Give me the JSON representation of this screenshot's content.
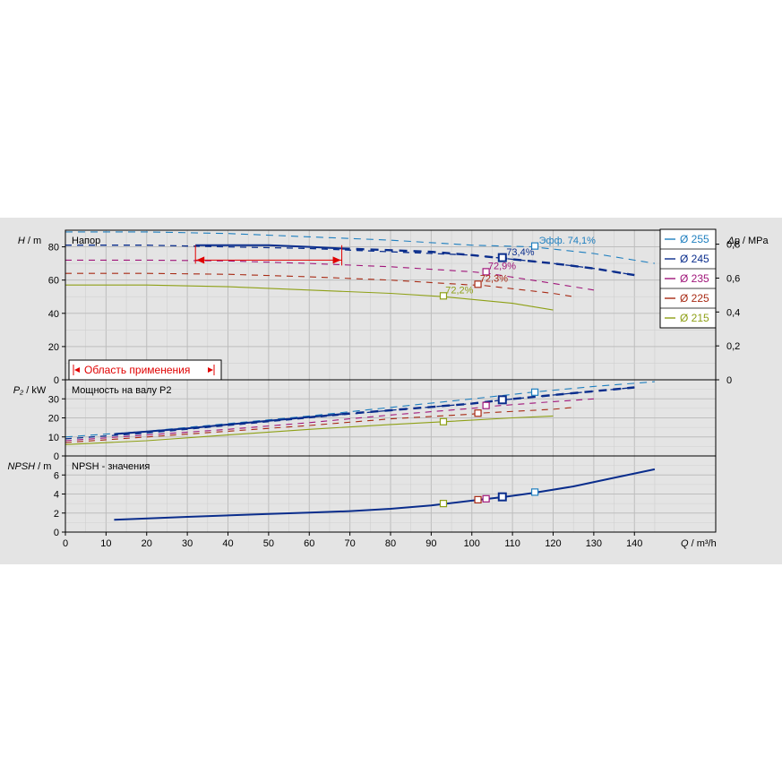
{
  "colors": {
    "background": "#e4e4e4",
    "grid": "#bdbdbd",
    "d255": "#1f7fbf",
    "d245": "#0a2d8c",
    "d235": "#a0157a",
    "d225": "#a82a14",
    "d215": "#8ea016",
    "range": "#e00000",
    "op_line": "#0a2d8c"
  },
  "chart_data": {
    "type": "line",
    "x_axis": {
      "label_italic": "Q",
      "label_unit": " / m³/h",
      "range": [
        0,
        160
      ],
      "ticks": [
        0,
        10,
        20,
        30,
        40,
        50,
        60,
        70,
        80,
        90,
        100,
        110,
        120,
        130,
        140
      ]
    },
    "legend": {
      "placement": "top-right",
      "entries": [
        {
          "key": "d255",
          "label": "Ø 255"
        },
        {
          "key": "d245",
          "label": "Ø 245"
        },
        {
          "key": "d235",
          "label": "Ø 235"
        },
        {
          "key": "d225",
          "label": "Ø 225"
        },
        {
          "key": "d215",
          "label": "Ø 215"
        }
      ]
    },
    "panels": {
      "head": {
        "title": "Напор",
        "ylabel_italic": "H",
        "ylabel_unit": " / m",
        "ylim": [
          0,
          90
        ],
        "ticks": [
          0,
          20,
          40,
          60,
          80
        ],
        "right_axis": {
          "label_italic": "Δp",
          "label_unit": " / MPa",
          "ticks": [
            "0",
            "0,2",
            "0,4",
            "0,6",
            "0,8"
          ],
          "tick_values_m": [
            0,
            20.4,
            40.8,
            61.2,
            81.6
          ]
        },
        "series": [
          {
            "key": "d255",
            "dash": "8,6",
            "width": 1.1,
            "points": [
              [
                0,
                89
              ],
              [
                20,
                89
              ],
              [
                40,
                88
              ],
              [
                60,
                86
              ],
              [
                80,
                84
              ],
              [
                100,
                81
              ],
              [
                115,
                80
              ],
              [
                130,
                76
              ],
              [
                145,
                70
              ]
            ]
          },
          {
            "key": "d245",
            "dash": "7,6",
            "width": 1.3,
            "points": [
              [
                0,
                81
              ],
              [
                20,
                81
              ],
              [
                40,
                80
              ],
              [
                60,
                79
              ],
              [
                80,
                77
              ],
              [
                100,
                75
              ],
              [
                108,
                73
              ],
              [
                120,
                70
              ],
              [
                130,
                67
              ],
              [
                140,
                63
              ]
            ]
          },
          {
            "key": "d235",
            "dash": "7,6",
            "width": 1.1,
            "points": [
              [
                0,
                72
              ],
              [
                20,
                72
              ],
              [
                40,
                71.5
              ],
              [
                60,
                70
              ],
              [
                80,
                68
              ],
              [
                100,
                65
              ],
              [
                104,
                64
              ],
              [
                120,
                58
              ],
              [
                130,
                54
              ]
            ]
          },
          {
            "key": "d225",
            "dash": "7,6",
            "width": 1.1,
            "points": [
              [
                0,
                64
              ],
              [
                20,
                64
              ],
              [
                40,
                63.5
              ],
              [
                60,
                62
              ],
              [
                80,
                60
              ],
              [
                100,
                57
              ],
              [
                102,
                57
              ],
              [
                120,
                52
              ],
              [
                125,
                50
              ]
            ]
          },
          {
            "key": "d215",
            "dash": "",
            "width": 1.1,
            "points": [
              [
                0,
                57
              ],
              [
                20,
                57
              ],
              [
                40,
                56
              ],
              [
                60,
                54
              ],
              [
                80,
                52
              ],
              [
                93,
                50
              ],
              [
                110,
                46
              ],
              [
                120,
                42
              ]
            ]
          }
        ],
        "operating_curve": {
          "key": "op_line",
          "points": [
            [
              32,
              81
            ],
            [
              50,
              81
            ],
            [
              60,
              80
            ],
            [
              68,
              79
            ]
          ],
          "tail_points": [
            [
              68,
              79
            ],
            [
              80,
              78
            ],
            [
              90,
              77
            ],
            [
              100,
              75
            ],
            [
              108,
              73
            ],
            [
              120,
              70
            ],
            [
              130,
              67
            ],
            [
              140,
              63
            ]
          ]
        },
        "range_bracket": {
          "x_min": 32,
          "x_max": 68,
          "y_top": 81,
          "y_bottom": 72
        },
        "markers": [
          {
            "key": "d255",
            "x": 115.5,
            "y": 80.5
          },
          {
            "key": "d245",
            "x": 107.5,
            "y": 73.5
          },
          {
            "key": "d235",
            "x": 103.5,
            "y": 65
          },
          {
            "key": "d225",
            "x": 101.5,
            "y": 57.5
          },
          {
            "key": "d215",
            "x": 93,
            "y": 50.5
          }
        ],
        "annotations": [
          {
            "key": "d255",
            "text": "Эфф.  74,1%",
            "x": 116.5,
            "y": 82
          },
          {
            "key": "d245",
            "text": "73,4%",
            "x": 108.5,
            "y": 75
          },
          {
            "key": "d235",
            "text": "72,9%",
            "x": 104,
            "y": 66.5
          },
          {
            "key": "d225",
            "text": "72,3%",
            "x": 102,
            "y": 59
          },
          {
            "key": "d215",
            "text": "72,2%",
            "x": 93.5,
            "y": 52
          }
        ],
        "range_box_label": "Область применения"
      },
      "power": {
        "title": "Мощность на валу P2",
        "ylabel_italic": "P₂",
        "ylabel_unit": " / kW",
        "ylim": [
          0,
          40
        ],
        "ticks": [
          0,
          10,
          20,
          30
        ],
        "series": [
          {
            "key": "d255",
            "dash": "8,6",
            "width": 1.1,
            "points": [
              [
                0,
                10
              ],
              [
                20,
                13
              ],
              [
                40,
                17
              ],
              [
                60,
                21
              ],
              [
                80,
                25.5
              ],
              [
                100,
                30
              ],
              [
                115,
                33.5
              ],
              [
                130,
                36.5
              ],
              [
                145,
                39
              ]
            ]
          },
          {
            "key": "d245",
            "dash": "7,6",
            "width": 1.3,
            "points": [
              [
                0,
                9
              ],
              [
                20,
                12
              ],
              [
                40,
                16
              ],
              [
                60,
                20
              ],
              [
                80,
                24
              ],
              [
                100,
                27.5
              ],
              [
                108,
                29.5
              ],
              [
                120,
                32
              ],
              [
                140,
                36
              ]
            ]
          },
          {
            "key": "d235",
            "dash": "7,6",
            "width": 1.1,
            "points": [
              [
                0,
                8
              ],
              [
                20,
                11
              ],
              [
                40,
                14
              ],
              [
                60,
                17.5
              ],
              [
                80,
                21.5
              ],
              [
                100,
                25
              ],
              [
                104,
                26
              ],
              [
                120,
                28.5
              ],
              [
                130,
                30
              ]
            ]
          },
          {
            "key": "d225",
            "dash": "7,6",
            "width": 1.1,
            "points": [
              [
                0,
                7
              ],
              [
                20,
                10
              ],
              [
                40,
                13
              ],
              [
                60,
                16
              ],
              [
                80,
                19.5
              ],
              [
                100,
                22
              ],
              [
                102,
                22.5
              ],
              [
                120,
                24.5
              ],
              [
                125,
                25.5
              ]
            ]
          },
          {
            "key": "d215",
            "dash": "",
            "width": 1.1,
            "points": [
              [
                0,
                6
              ],
              [
                20,
                8
              ],
              [
                40,
                11
              ],
              [
                60,
                14
              ],
              [
                80,
                16.5
              ],
              [
                93,
                18
              ],
              [
                110,
                20
              ],
              [
                120,
                21
              ]
            ]
          }
        ],
        "operating_curve": {
          "key": "op_line",
          "points": [
            [
              12,
              11.5
            ],
            [
              30,
              14.5
            ],
            [
              50,
              18.5
            ],
            [
              68,
              22
            ]
          ],
          "tail_points": [
            [
              68,
              22
            ],
            [
              80,
              24
            ],
            [
              100,
              27.5
            ],
            [
              108,
              29.5
            ],
            [
              120,
              32
            ],
            [
              140,
              36
            ]
          ]
        },
        "markers": [
          {
            "key": "d255",
            "x": 115.5,
            "y": 33.5
          },
          {
            "key": "d245",
            "x": 107.5,
            "y": 29.5
          },
          {
            "key": "d235",
            "x": 103.5,
            "y": 26.5
          },
          {
            "key": "d225",
            "x": 101.5,
            "y": 22.5
          },
          {
            "key": "d215",
            "x": 93,
            "y": 18
          }
        ]
      },
      "npsh": {
        "title": "NPSH - значения",
        "ylabel_italic": "NPSH",
        "ylabel_unit": " / m",
        "ylim": [
          0,
          8
        ],
        "ticks": [
          0,
          2,
          4,
          6
        ],
        "operating_curve": {
          "key": "op_line",
          "points": [
            [
              12,
              1.3
            ],
            [
              30,
              1.6
            ],
            [
              50,
              1.9
            ],
            [
              60,
              2.05
            ],
            [
              70,
              2.2
            ],
            [
              80,
              2.45
            ],
            [
              90,
              2.8
            ],
            [
              100,
              3.3
            ],
            [
              108,
              3.7
            ],
            [
              115,
              4.1
            ],
            [
              125,
              4.8
            ],
            [
              135,
              5.7
            ],
            [
              145,
              6.6
            ]
          ]
        },
        "markers": [
          {
            "key": "d255",
            "x": 115.5,
            "y": 4.2
          },
          {
            "key": "d245",
            "x": 107.5,
            "y": 3.7
          },
          {
            "key": "d235",
            "x": 103.5,
            "y": 3.5
          },
          {
            "key": "d225",
            "x": 101.5,
            "y": 3.4
          },
          {
            "key": "d215",
            "x": 93,
            "y": 3.0
          }
        ]
      }
    }
  }
}
